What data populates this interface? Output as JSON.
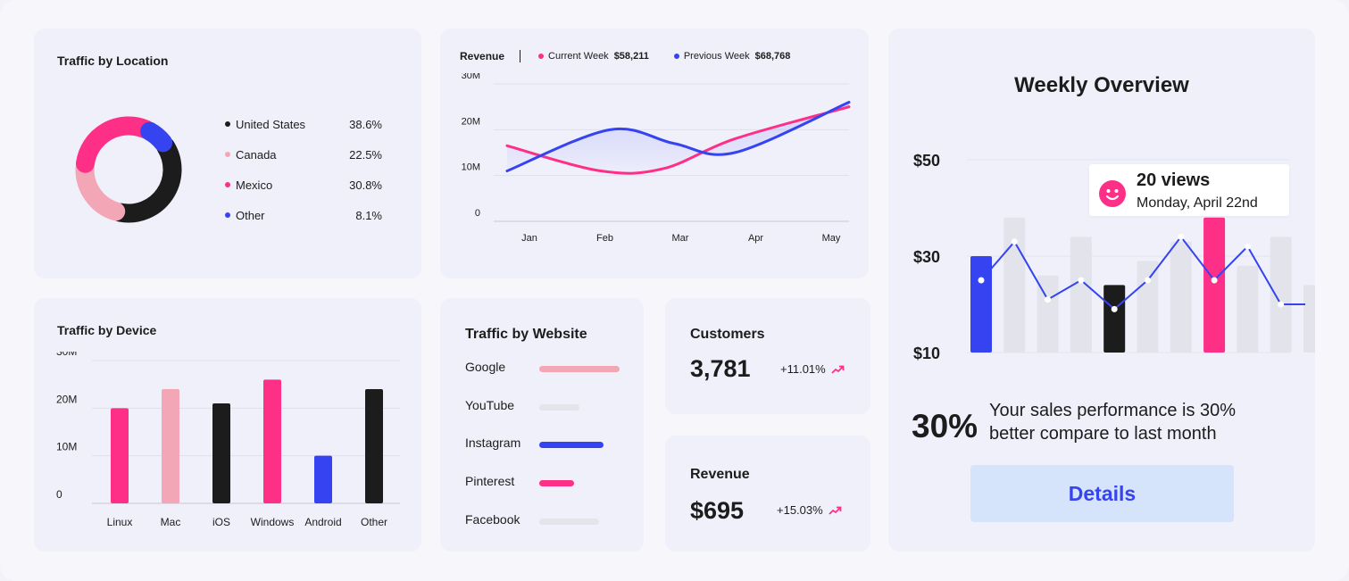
{
  "colors": {
    "pink": "#fd2f86",
    "lightpink": "#f3a6b5",
    "blue": "#3544f0",
    "black": "#1c1c1c",
    "gray": "#e3e3ec"
  },
  "location": {
    "title": "Traffic by Location",
    "items": [
      {
        "label": "United States",
        "value": "38.6%",
        "pct": 38.6,
        "color": "#1c1c1c"
      },
      {
        "label": "Canada",
        "value": "22.5%",
        "pct": 22.5,
        "color": "#f3a6b5"
      },
      {
        "label": "Mexico",
        "value": "30.8%",
        "pct": 30.8,
        "color": "#fd2f86"
      },
      {
        "label": "Other",
        "value": "8.1%",
        "pct": 8.1,
        "color": "#3544f0"
      }
    ]
  },
  "revenue_chart": {
    "title": "Revenue",
    "current_label": "Current Week",
    "current_value": "$58,211",
    "previous_label": "Previous Week",
    "previous_value": "$68,768"
  },
  "device": {
    "title": "Traffic by Device"
  },
  "website": {
    "title": "Traffic by Website",
    "items": [
      {
        "label": "Google",
        "fraction": 1.0,
        "color": "#f3a6b5"
      },
      {
        "label": "YouTube",
        "fraction": 0.5,
        "color": "#e3e5ea"
      },
      {
        "label": "Instagram",
        "fraction": 0.8,
        "color": "#3544f0"
      },
      {
        "label": "Pinterest",
        "fraction": 0.43,
        "color": "#fd2f86"
      },
      {
        "label": "Facebook",
        "fraction": 0.74,
        "color": "#e3e5ea"
      }
    ]
  },
  "customers": {
    "title": "Customers",
    "value": "3,781",
    "change": "+11.01%"
  },
  "revenue_stat": {
    "title": "Revenue",
    "value": "$695",
    "change": "+15.03%"
  },
  "weekly": {
    "title": "Weekly Overview",
    "tooltip_views": "20 views",
    "tooltip_date": "Monday, April 22nd",
    "percent": "30%",
    "summary": "Your sales performance is 30% better compare to last month",
    "details_label": "Details"
  },
  "chart_data": [
    {
      "type": "pie",
      "title": "Traffic by Location",
      "labels": [
        "United States",
        "Canada",
        "Mexico",
        "Other"
      ],
      "values": [
        38.6,
        22.5,
        30.8,
        8.1
      ]
    },
    {
      "type": "line",
      "title": "Revenue",
      "categories": [
        "Jan",
        "Feb",
        "Mar",
        "Apr",
        "May"
      ],
      "yticks": [
        "0",
        "10M",
        "20M",
        "30M"
      ],
      "ylim": [
        0,
        30
      ],
      "series": [
        {
          "name": "Current Week",
          "color": "#fd2f86",
          "values": [
            16.5,
            11,
            11.5,
            18,
            25
          ]
        },
        {
          "name": "Previous Week",
          "color": "#3544f0",
          "values": [
            11,
            20,
            17,
            15,
            26
          ]
        }
      ]
    },
    {
      "type": "bar",
      "title": "Traffic by Device",
      "categories": [
        "Linux",
        "Mac",
        "iOS",
        "Windows",
        "Android",
        "Other"
      ],
      "yticks": [
        "0",
        "10M",
        "20M",
        "30M"
      ],
      "ylim": [
        0,
        30
      ],
      "values": [
        20,
        24,
        21,
        26,
        10,
        24
      ],
      "colors": [
        "#fd2f86",
        "#f3a6b5",
        "#1c1c1c",
        "#fd2f86",
        "#3544f0",
        "#1c1c1c"
      ]
    },
    {
      "type": "bar",
      "title": "Weekly Overview",
      "yticks": [
        "$10",
        "$30",
        "$50"
      ],
      "ylim": [
        10,
        50
      ],
      "values": [
        30,
        38,
        26,
        34,
        24,
        29,
        33,
        38,
        28,
        34,
        24
      ],
      "highlight": [
        "#3544f0",
        null,
        null,
        null,
        "#1c1c1c",
        null,
        null,
        "#fd2f86",
        null,
        null,
        null
      ],
      "line": [
        25,
        33,
        21,
        25,
        19,
        25,
        34,
        25,
        32,
        20
      ]
    }
  ]
}
